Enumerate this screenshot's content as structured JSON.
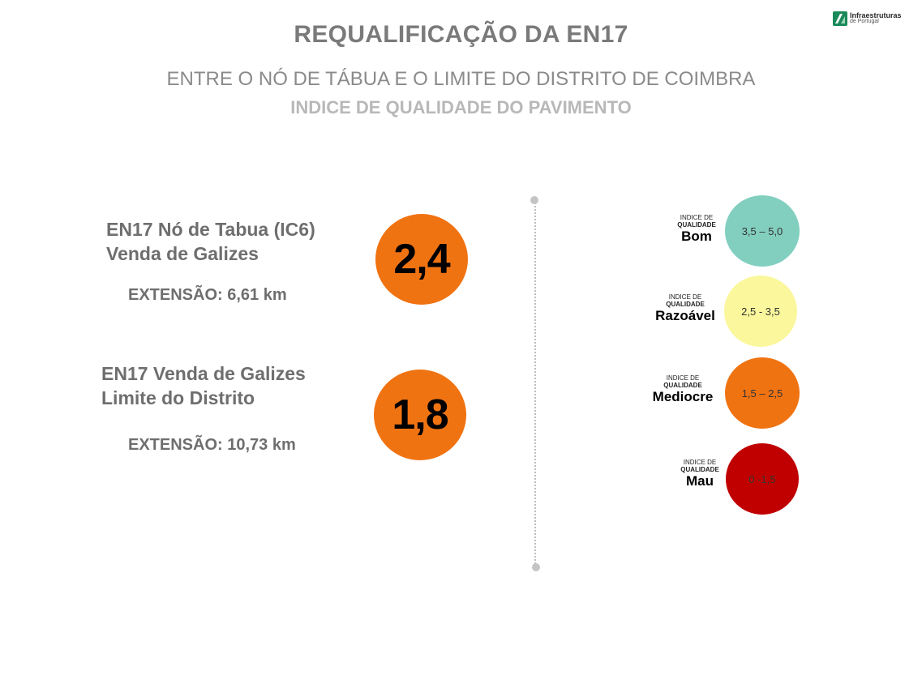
{
  "header": {
    "title": "REQUALIFICAÇÃO DA EN17",
    "subtitle": "ENTRE O NÓ DE TÁBUA E O LIMITE DO DISTRITO DE COIMBRA",
    "subtitle2": "INDICE DE QUALIDADE DO PAVIMENTO"
  },
  "logo": {
    "line1": "Infraestruturas",
    "line2": "de Portugal",
    "color": "#1a8a5a"
  },
  "sections": [
    {
      "name_line1": "EN17 Nó de Tabua (IC6)",
      "name_line2": "Venda de Galizes",
      "extension": "EXTENSÃO: 6,61 km",
      "value": "2,4",
      "color": "#f07312"
    },
    {
      "name_line1": "EN17 Venda de Galizes",
      "name_line2": "Limite do Distrito",
      "extension": "EXTENSÃO: 10,73 km",
      "value": "1,8",
      "color": "#f07312"
    }
  ],
  "legend": [
    {
      "small1": "INDICE DE",
      "small2": "QUALIDADE",
      "label": "Bom",
      "range": "3,5 – 5,0",
      "color": "#82cfc0"
    },
    {
      "small1": "INDICE DE",
      "small2": "QUALIDADE",
      "label": "Razoável",
      "range": "2,5 - 3,5",
      "color": "#fbf79c"
    },
    {
      "small1": "INDICE DE",
      "small2": "QUALIDADE",
      "label": "Mediocre",
      "range": "1,5 – 2,5",
      "color": "#f07312"
    },
    {
      "small1": "INDICE DE",
      "small2": "QUALIDADE",
      "label": "Mau",
      "range": "0 -1,5",
      "color": "#c00000"
    }
  ]
}
